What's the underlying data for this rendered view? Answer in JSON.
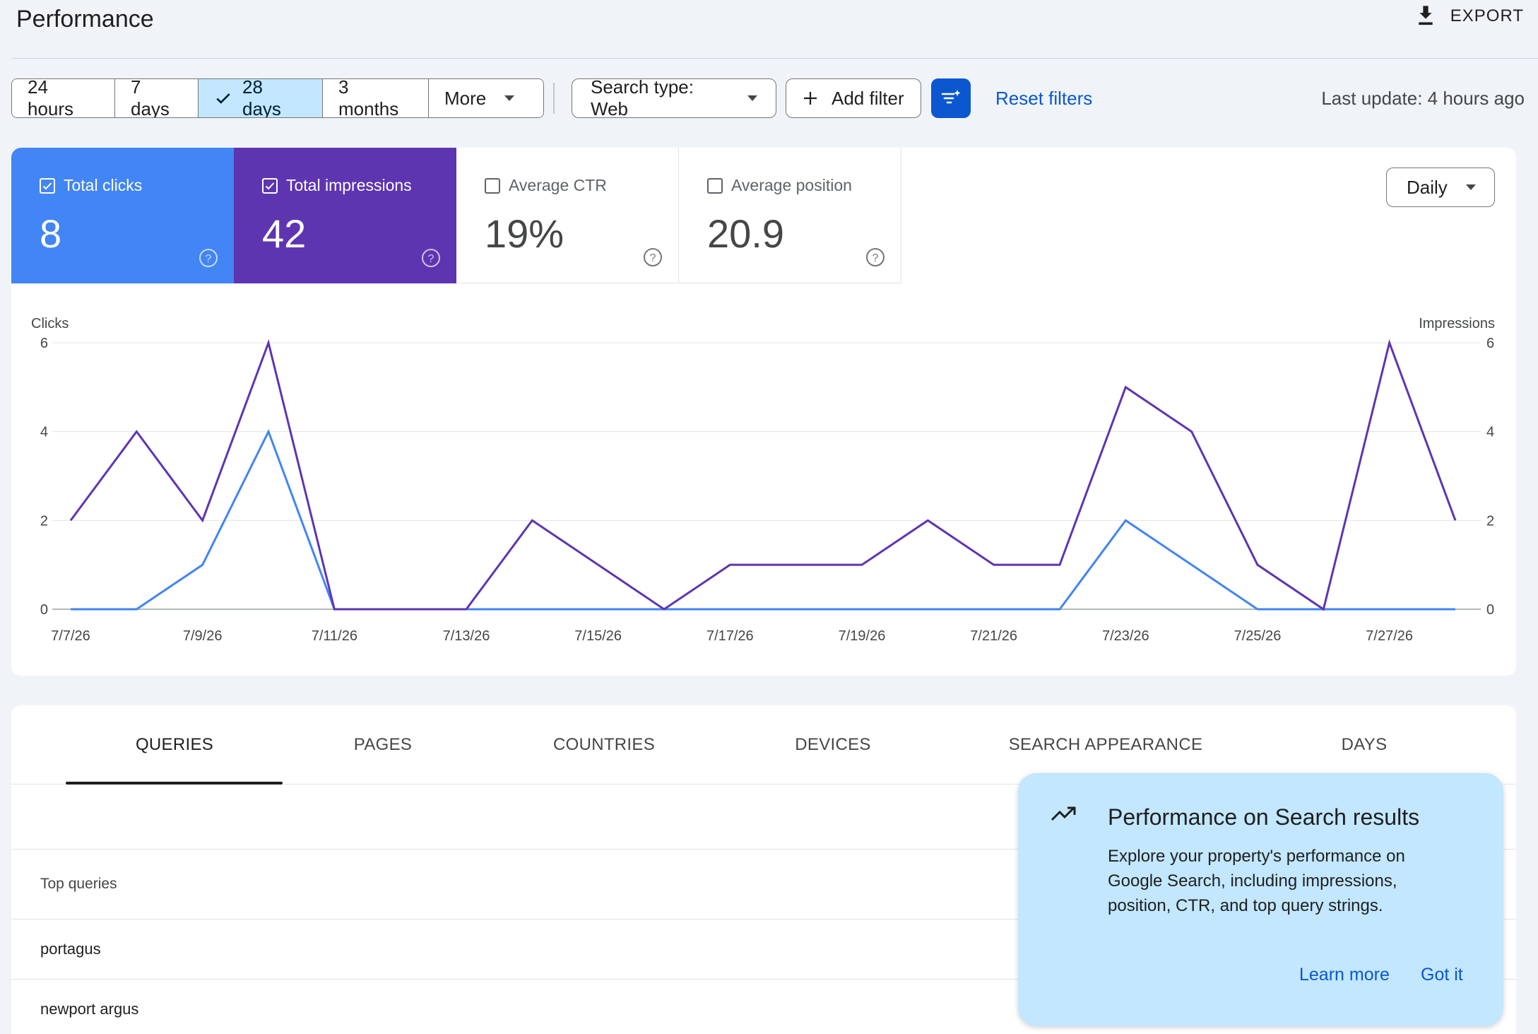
{
  "header": {
    "title": "Performance",
    "export_label": "EXPORT"
  },
  "toolbar": {
    "date_ranges": [
      "24 hours",
      "7 days",
      "28 days",
      "3 months",
      "More"
    ],
    "active_range": "28 days",
    "search_type": "Search type: Web",
    "add_filter": "Add filter",
    "reset_filters": "Reset filters",
    "last_update": "Last update: 4 hours ago"
  },
  "metrics": {
    "clicks": {
      "label": "Total clicks",
      "value": "8",
      "checked": true,
      "color": "#4285f4"
    },
    "impressions": {
      "label": "Total impressions",
      "value": "42",
      "checked": true,
      "color": "#5e35b1"
    },
    "ctr": {
      "label": "Average CTR",
      "value": "19%",
      "checked": false
    },
    "position": {
      "label": "Average position",
      "value": "20.9",
      "checked": false
    }
  },
  "granularity": "Daily",
  "chart_data": {
    "type": "line",
    "left_axis_label": "Clicks",
    "right_axis_label": "Impressions",
    "ylim": [
      0,
      6
    ],
    "y_ticks": [
      0,
      2,
      4,
      6
    ],
    "x": [
      "7/7/26",
      "7/8/26",
      "7/9/26",
      "7/10/26",
      "7/11/26",
      "7/12/26",
      "7/13/26",
      "7/14/26",
      "7/15/26",
      "7/16/26",
      "7/17/26",
      "7/18/26",
      "7/19/26",
      "7/20/26",
      "7/21/26",
      "7/22/26",
      "7/23/26",
      "7/24/26",
      "7/25/26",
      "7/26/26",
      "7/27/26",
      "7/28/26"
    ],
    "x_tick_labels": [
      "7/7/26",
      "7/9/26",
      "7/11/26",
      "7/13/26",
      "7/15/26",
      "7/17/26",
      "7/19/26",
      "7/21/26",
      "7/23/26",
      "7/25/26",
      "7/27/26"
    ],
    "series": [
      {
        "name": "Clicks",
        "color": "#4285f4",
        "values": [
          0,
          0,
          1,
          4,
          0,
          0,
          0,
          0,
          0,
          0,
          0,
          0,
          0,
          0,
          0,
          0,
          2,
          1,
          0,
          0,
          0,
          0
        ]
      },
      {
        "name": "Impressions",
        "color": "#5e35b1",
        "values": [
          2,
          4,
          2,
          6,
          0,
          0,
          0,
          2,
          1,
          0,
          1,
          1,
          1,
          2,
          1,
          1,
          5,
          4,
          1,
          0,
          6,
          2
        ]
      }
    ],
    "grid": true
  },
  "tabs": [
    "QUERIES",
    "PAGES",
    "COUNTRIES",
    "DEVICES",
    "SEARCH APPEARANCE",
    "DAYS"
  ],
  "active_tab": "QUERIES",
  "table": {
    "header": "Top queries",
    "rows": [
      "portagus",
      "newport argus"
    ]
  },
  "popup": {
    "title": "Performance on Search results",
    "body": "Explore your property's performance on Google Search, including impressions, position, CTR, and top query strings.",
    "learn_more": "Learn more",
    "got_it": "Got it"
  }
}
